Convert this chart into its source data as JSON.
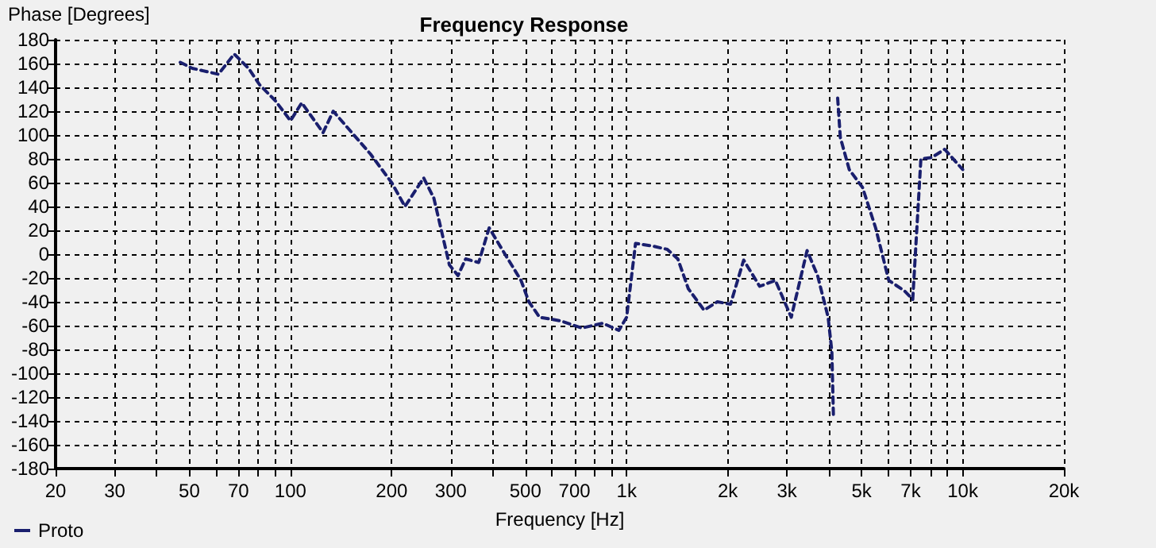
{
  "chart_data": {
    "type": "line",
    "title": "Frequency Response",
    "xlabel": "Frequency [Hz]",
    "ylabel": "Phase [Degrees]",
    "log": "x",
    "grid": true,
    "legend": "bottom left",
    "line_style": "dashed",
    "marker": "none",
    "xlim": [
      20,
      20000
    ],
    "xticks": [
      20,
      30,
      {
        "value": 40,
        "label": null
      },
      50,
      {
        "value": 60,
        "label": null
      },
      70,
      {
        "value": 80,
        "label": null
      },
      {
        "value": 90,
        "label": null
      },
      100,
      200,
      300,
      {
        "value": 400,
        "label": null
      },
      500,
      {
        "value": 600,
        "label": null
      },
      700,
      {
        "value": 800,
        "label": null
      },
      {
        "value": 900,
        "label": null
      },
      {
        "value": 1000,
        "label": "1k"
      },
      {
        "value": 2000,
        "label": "2k"
      },
      {
        "value": 3000,
        "label": "3k"
      },
      {
        "value": 4000,
        "label": null
      },
      {
        "value": 5000,
        "label": "5k"
      },
      {
        "value": 6000,
        "label": null
      },
      {
        "value": 7000,
        "label": "7k"
      },
      {
        "value": 8000,
        "label": null
      },
      {
        "value": 9000,
        "label": null
      },
      {
        "value": 10000,
        "label": "10k"
      },
      {
        "value": 20000,
        "label": "20k"
      }
    ],
    "ylim": [
      -180,
      180
    ],
    "yticks": [
      -180,
      -160,
      -140,
      -120,
      -100,
      -80,
      -60,
      -40,
      -20,
      0,
      20,
      40,
      60,
      80,
      100,
      120,
      140,
      160,
      180
    ],
    "series": [
      {
        "name": "Proto",
        "color": "#1a1f6e",
        "x": [
          47,
          51,
          61,
          68,
          75,
          81,
          90,
          100,
          108,
          125,
          134,
          173,
          200,
          219,
          249,
          267,
          297,
          315,
          332,
          363,
          390,
          426,
          485,
          512,
          551,
          637,
          736,
          850,
          948,
          1000,
          1063,
          1185,
          1321,
          1420,
          1526,
          1700,
          1862,
          2038,
          2230,
          2488,
          2770,
          3089,
          3443,
          3700,
          3977,
          4080,
          4124,
          4180,
          4245,
          4323,
          4596,
          5034,
          5507,
          6025,
          6717,
          7101,
          7508,
          8072,
          8838,
          10000
        ],
        "values": [
          161,
          156,
          151,
          168,
          156,
          142,
          129,
          112,
          127,
          102,
          120,
          84,
          60,
          40,
          64,
          47,
          -9,
          -18,
          -4,
          -7,
          22,
          4,
          -22,
          -40,
          -53,
          -56,
          -62,
          -58,
          -64,
          -53,
          9,
          7,
          4,
          -4,
          -29,
          -47,
          -40,
          -42,
          -5,
          -27,
          -22,
          -53,
          3,
          -18,
          -53,
          -82,
          -136,
          null,
          131,
          98,
          71,
          56,
          22,
          -22,
          -31,
          -38,
          80,
          81,
          88,
          71
        ]
      }
    ]
  }
}
